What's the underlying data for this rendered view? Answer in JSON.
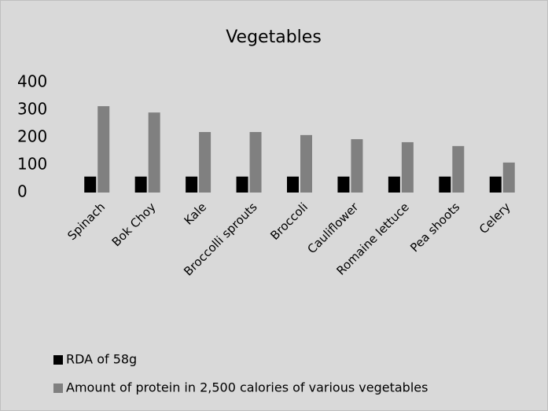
{
  "chart_data": {
    "type": "bar",
    "title": "Vegetables",
    "categories": [
      "Spinach",
      "Bok Choy",
      "Kale",
      "Broccolli sprouts",
      "Broccoli",
      "Cauliflower",
      "Romaine  lettuce",
      "Pea shoots",
      "Celery"
    ],
    "series": [
      {
        "name": "RDA of 58g",
        "color": "#000000",
        "values": [
          58,
          58,
          58,
          58,
          58,
          58,
          58,
          58,
          58
        ]
      },
      {
        "name": "Amount of protein in 2,500 calories of various vegetables",
        "color": "#808080",
        "values": [
          314,
          291,
          220,
          220,
          209,
          194,
          183,
          169,
          109
        ]
      }
    ],
    "ylim": [
      0,
      400
    ],
    "yticks": [
      0,
      100,
      200,
      300,
      400
    ],
    "grid": false
  }
}
